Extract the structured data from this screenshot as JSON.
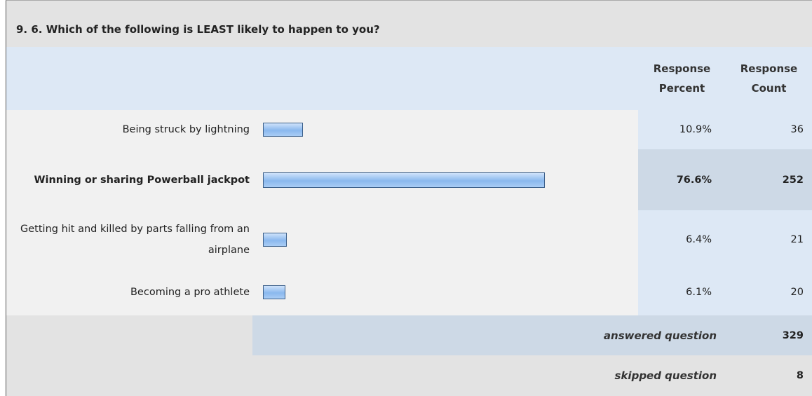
{
  "title": "9. 6. Which of the following is LEAST likely to happen to you?",
  "header": {
    "percent": "Response Percent",
    "count": "Response Count"
  },
  "rows": [
    {
      "label": "Being struck by lightning",
      "percent": {
        "value": 10.9,
        "label": "10.9%"
      },
      "count": 36
    },
    {
      "label": "Winning or sharing Powerball jackpot",
      "percent": {
        "value": 76.6,
        "label": "76.6%"
      },
      "count": 252
    },
    {
      "label": "Getting hit and killed by parts falling from an airplane",
      "percent": {
        "value": 6.4,
        "label": "6.4%"
      },
      "count": 21
    },
    {
      "label": "Becoming a pro athlete",
      "percent": {
        "value": 6.1,
        "label": "6.1%"
      },
      "count": 20
    }
  ],
  "answered": {
    "label": "answered question",
    "value": 329
  },
  "skipped": {
    "label": "skipped question",
    "value": 8
  }
}
